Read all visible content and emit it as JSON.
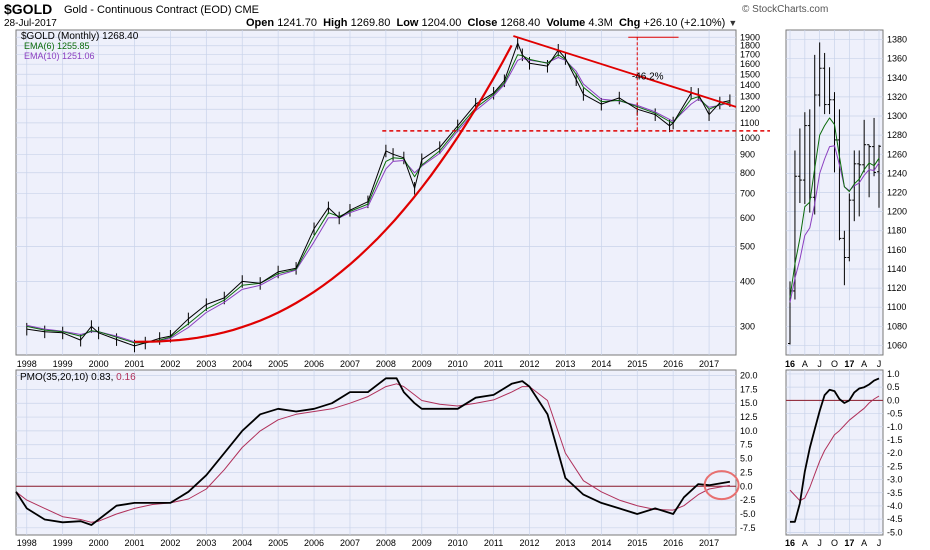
{
  "header": {
    "symbol": "$GOLD",
    "name": "Gold - Continuous Contract (EOD)",
    "exchange": "CME",
    "date": "28-Jul-2017",
    "brand": "© StockCharts.com",
    "quote": {
      "open_label": "Open",
      "open": "1241.70",
      "high_label": "High",
      "high": "1269.80",
      "low_label": "Low",
      "low": "1204.00",
      "close_label": "Close",
      "close": "1268.40",
      "volume_label": "Volume",
      "volume": "4.3M",
      "chg_label": "Chg",
      "chg": "+26.10 (+2.10%)"
    }
  },
  "colors": {
    "background": "#ffffff",
    "panel": "#eef0fb",
    "grid": "#c9d3ea",
    "price": "#000000",
    "ema6": "#0a6b0a",
    "ema10": "#8b3fc0",
    "pmo_signal": "#b0305a",
    "annotation": "#e00000"
  },
  "chart_data": [
    {
      "type": "line",
      "title": "$GOLD (Monthly) 1268.40",
      "legend": [
        {
          "label": "$GOLD (Monthly) 1268.40",
          "color": "#000000"
        },
        {
          "label": "EMA(6) 1255.85",
          "color": "#0a6b0a"
        },
        {
          "label": "EMA(10) 1251.06",
          "color": "#8b3fc0"
        }
      ],
      "legend_position": "top-left",
      "scale": "log",
      "grid": true,
      "x_tick_labels": [
        "1998",
        "1999",
        "2000",
        "2001",
        "2002",
        "2003",
        "2004",
        "2005",
        "2006",
        "2007",
        "2008",
        "2009",
        "2010",
        "2011",
        "2012",
        "2013",
        "2014",
        "2015",
        "2016",
        "2017"
      ],
      "y_tick_labels": [
        "300",
        "400",
        "500",
        "600",
        "700",
        "800",
        "900",
        "1000",
        "1100",
        "1200",
        "1300",
        "1400",
        "1500",
        "1600",
        "1700",
        "1800",
        "1900"
      ],
      "xlim": [
        1997.7,
        2017.75
      ],
      "ylim": [
        250,
        1990
      ],
      "x": [
        1998.0,
        1998.5,
        1999.0,
        1999.5,
        1999.8,
        2000.0,
        2000.5,
        2001.0,
        2001.3,
        2001.7,
        2002.0,
        2002.5,
        2003.0,
        2003.5,
        2004.0,
        2004.5,
        2005.0,
        2005.5,
        2006.0,
        2006.4,
        2006.7,
        2007.0,
        2007.5,
        2008.0,
        2008.2,
        2008.5,
        2008.8,
        2009.0,
        2009.5,
        2010.0,
        2010.5,
        2011.0,
        2011.3,
        2011.67,
        2011.8,
        2012.0,
        2012.5,
        2012.8,
        2013.0,
        2013.3,
        2013.5,
        2014.0,
        2014.5,
        2015.0,
        2015.5,
        2015.9,
        2016.0,
        2016.5,
        2016.7,
        2017.0,
        2017.3,
        2017.58
      ],
      "close": [
        295,
        290,
        288,
        275,
        300,
        288,
        276,
        265,
        270,
        278,
        282,
        315,
        345,
        360,
        400,
        395,
        425,
        435,
        560,
        640,
        600,
        630,
        665,
        920,
        900,
        880,
        725,
        870,
        940,
        1080,
        1240,
        1330,
        1440,
        1830,
        1700,
        1610,
        1580,
        1750,
        1660,
        1450,
        1320,
        1240,
        1290,
        1200,
        1160,
        1080,
        1100,
        1330,
        1320,
        1160,
        1250,
        1268.4
      ],
      "ema6": [
        300,
        293,
        290,
        282,
        292,
        290,
        280,
        270,
        270,
        275,
        280,
        305,
        335,
        355,
        390,
        395,
        420,
        432,
        535,
        620,
        605,
        625,
        655,
        860,
        880,
        875,
        780,
        840,
        920,
        1060,
        1210,
        1320,
        1420,
        1700,
        1690,
        1650,
        1610,
        1700,
        1650,
        1500,
        1380,
        1260,
        1270,
        1220,
        1170,
        1110,
        1100,
        1280,
        1300,
        1200,
        1235,
        1255.85
      ],
      "ema10": [
        302,
        295,
        291,
        285,
        290,
        290,
        282,
        272,
        271,
        274,
        278,
        298,
        328,
        350,
        380,
        390,
        415,
        430,
        515,
        600,
        600,
        620,
        645,
        820,
        860,
        865,
        800,
        835,
        905,
        1045,
        1190,
        1305,
        1405,
        1640,
        1660,
        1640,
        1615,
        1670,
        1640,
        1530,
        1410,
        1280,
        1265,
        1230,
        1180,
        1125,
        1110,
        1240,
        1280,
        1215,
        1230,
        1251.06
      ],
      "annotations": [
        {
          "type": "text",
          "label": "-46.2%"
        }
      ]
    },
    {
      "type": "line",
      "title": "PMO(35,20,10) 0.83, 0.16",
      "legend": [
        {
          "label": "PMO(35,20,10) 0.83,",
          "color": "#000000"
        },
        {
          "label": "0.16",
          "color": "#b0305a"
        }
      ],
      "legend_position": "top-left",
      "grid": true,
      "x_tick_labels": [
        "1998",
        "1999",
        "2000",
        "2001",
        "2002",
        "2003",
        "2004",
        "2005",
        "2006",
        "2007",
        "2008",
        "2009",
        "2010",
        "2011",
        "2012",
        "2013",
        "2014",
        "2015",
        "2016",
        "2017"
      ],
      "y_tick_labels": [
        "-7.5",
        "-5.0",
        "-2.5",
        "0.0",
        "2.5",
        "5.0",
        "7.5",
        "10.0",
        "12.5",
        "15.0",
        "17.5",
        "20.0"
      ],
      "xlim": [
        1997.7,
        2017.75
      ],
      "ylim": [
        -8.8,
        21.0
      ],
      "x": [
        1997.7,
        1998.0,
        1998.5,
        1999.0,
        1999.5,
        1999.8,
        2000.0,
        2000.5,
        2001.0,
        2001.5,
        2002.0,
        2002.5,
        2003.0,
        2003.5,
        2004.0,
        2004.5,
        2005.0,
        2005.5,
        2006.0,
        2006.5,
        2007.0,
        2007.5,
        2008.0,
        2008.3,
        2008.5,
        2008.8,
        2009.0,
        2009.5,
        2010.0,
        2010.5,
        2011.0,
        2011.5,
        2011.8,
        2012.0,
        2012.5,
        2013.0,
        2013.5,
        2014.0,
        2014.5,
        2015.0,
        2015.5,
        2016.0,
        2016.3,
        2016.7,
        2017.0,
        2017.58
      ],
      "pmo": [
        -1,
        -4,
        -6,
        -6.5,
        -6.3,
        -7,
        -6,
        -3.5,
        -3,
        -3,
        -3,
        -1,
        2,
        6,
        10,
        13,
        14,
        13.5,
        14,
        15,
        17,
        17,
        19.5,
        19.5,
        17,
        15,
        14,
        14,
        14,
        16,
        16.5,
        18.5,
        19,
        18,
        13,
        1.5,
        -1.5,
        -3,
        -4,
        -5,
        -4,
        -5,
        -2,
        0.4,
        0.2,
        0.83
      ],
      "signal": [
        -1,
        -2.5,
        -4,
        -5.5,
        -6,
        -6.5,
        -6.3,
        -5,
        -4,
        -3.3,
        -3,
        -2.3,
        -0.5,
        3,
        7,
        10,
        12,
        13,
        13.5,
        14,
        15,
        16.2,
        18,
        18.5,
        18,
        16.5,
        15.5,
        14.8,
        14.5,
        15,
        15.6,
        17,
        18,
        18,
        15.5,
        6,
        1,
        -1,
        -2.5,
        -3.5,
        -4.2,
        -4.3,
        -3.5,
        -1.5,
        -0.5,
        0.16
      ]
    },
    {
      "type": "line",
      "title": "",
      "grid": true,
      "x_tick_labels": [
        "16",
        "A",
        "J",
        "O",
        "17",
        "A",
        "J"
      ],
      "y_tick_labels": [
        "1060",
        "1080",
        "1100",
        "1120",
        "1140",
        "1160",
        "1180",
        "1200",
        "1220",
        "1240",
        "1260",
        "1280",
        "1300",
        "1320",
        "1340",
        "1360",
        "1380"
      ],
      "ylim": [
        1050,
        1390
      ],
      "x": [
        "2016-01",
        "2016-02",
        "2016-03",
        "2016-04",
        "2016-05",
        "2016-06",
        "2016-07",
        "2016-08",
        "2016-09",
        "2016-10",
        "2016-11",
        "2016-12",
        "2017-01",
        "2017-02",
        "2017-03",
        "2017-04",
        "2017-05",
        "2017-06",
        "2017-07"
      ],
      "open": [
        1062,
        1117,
        1237,
        1233,
        1290,
        1215,
        1322,
        1350,
        1312,
        1317,
        1275,
        1172,
        1152,
        1212,
        1250,
        1249,
        1270,
        1268,
        1241.7
      ],
      "high": [
        1127,
        1264,
        1287,
        1304,
        1307,
        1364,
        1377,
        1366,
        1351,
        1325,
        1307,
        1180,
        1219,
        1264,
        1264,
        1296,
        1270,
        1298,
        1269.8
      ],
      "low": [
        1061,
        1108,
        1209,
        1208,
        1199,
        1197,
        1310,
        1302,
        1302,
        1241,
        1170,
        1123,
        1148,
        1190,
        1195,
        1241,
        1215,
        1237,
        1204
      ],
      "close": [
        1117,
        1237,
        1233,
        1290,
        1215,
        1322,
        1350,
        1312,
        1317,
        1275,
        1172,
        1152,
        1212,
        1250,
        1249,
        1270,
        1268,
        1241,
        1268.4
      ],
      "ema6": [
        1110,
        1145,
        1172,
        1205,
        1210,
        1245,
        1280,
        1290,
        1298,
        1291,
        1258,
        1226,
        1221,
        1229,
        1234,
        1244,
        1251,
        1248,
        1255.85
      ],
      "ema10": [
        1105,
        1130,
        1150,
        1175,
        1183,
        1208,
        1240,
        1255,
        1268,
        1269,
        1249,
        1226,
        1222,
        1227,
        1230,
        1238,
        1244,
        1243,
        1251.06
      ]
    },
    {
      "type": "line",
      "title": "",
      "grid": true,
      "x_tick_labels": [
        "16",
        "A",
        "J",
        "O",
        "17",
        "A",
        "J"
      ],
      "y_tick_labels": [
        "-5.0",
        "-4.5",
        "-4.0",
        "-3.5",
        "-3.0",
        "-2.5",
        "-2.0",
        "-1.5",
        "-1.0",
        "-0.5",
        "0.0",
        "0.5",
        "1.0"
      ],
      "ylim": [
        -5.1,
        1.15
      ],
      "x": [
        "2016-01",
        "2016-02",
        "2016-03",
        "2016-04",
        "2016-05",
        "2016-06",
        "2016-07",
        "2016-08",
        "2016-09",
        "2016-10",
        "2016-11",
        "2016-12",
        "2017-01",
        "2017-02",
        "2017-03",
        "2017-04",
        "2017-05",
        "2017-06",
        "2017-07"
      ],
      "pmo": [
        -4.6,
        -4.6,
        -3.9,
        -2.7,
        -1.8,
        -1.1,
        -0.4,
        0.2,
        0.4,
        0.35,
        0.05,
        -0.1,
        0.0,
        0.3,
        0.45,
        0.5,
        0.6,
        0.75,
        0.83
      ],
      "signal": [
        -3.4,
        -3.6,
        -3.8,
        -3.7,
        -3.3,
        -2.8,
        -2.3,
        -1.9,
        -1.6,
        -1.3,
        -1.15,
        -0.95,
        -0.75,
        -0.6,
        -0.45,
        -0.3,
        -0.1,
        0.05,
        0.16
      ]
    }
  ]
}
